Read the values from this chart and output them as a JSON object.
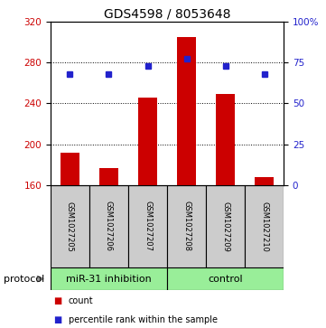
{
  "title": "GDS4598 / 8053648",
  "samples": [
    "GSM1027205",
    "GSM1027206",
    "GSM1027207",
    "GSM1027208",
    "GSM1027209",
    "GSM1027210"
  ],
  "counts": [
    192,
    177,
    246,
    305,
    249,
    168
  ],
  "percentiles": [
    68,
    68,
    73,
    77,
    73,
    68
  ],
  "ylim_left": [
    160,
    320
  ],
  "ylim_right": [
    0,
    100
  ],
  "yticks_left": [
    160,
    200,
    240,
    280,
    320
  ],
  "yticks_right": [
    0,
    25,
    50,
    75,
    100
  ],
  "yticklabels_right": [
    "0",
    "25",
    "50",
    "75",
    "100%"
  ],
  "bar_color": "#cc0000",
  "dot_color": "#2222cc",
  "grid_lines": [
    200,
    240,
    280
  ],
  "group_label": "protocol",
  "groups": [
    {
      "start": 0,
      "end": 2,
      "label": "miR-31 inhibition",
      "color": "#99ee99"
    },
    {
      "start": 3,
      "end": 5,
      "label": "control",
      "color": "#99ee99"
    }
  ],
  "legend_items": [
    {
      "color": "#cc0000",
      "label": "count"
    },
    {
      "color": "#2222cc",
      "label": "percentile rank within the sample"
    }
  ],
  "bar_width": 0.5,
  "background_color": "#ffffff",
  "sample_box_color": "#cccccc",
  "title_fontsize": 10,
  "tick_fontsize": 7.5,
  "sample_fontsize": 6,
  "protocol_fontsize": 8,
  "legend_fontsize": 7
}
